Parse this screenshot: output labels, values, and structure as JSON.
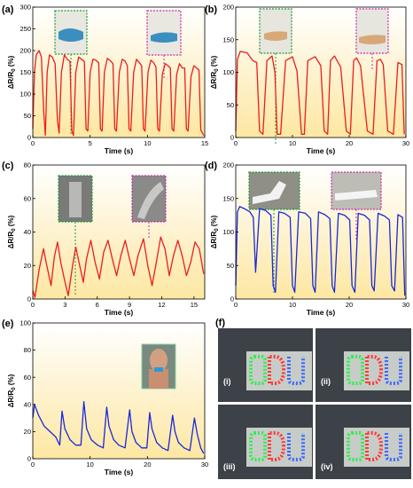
{
  "axis_labels": {
    "time": "Time (s)",
    "ylabel_main": "ΔR/R",
    "ylabel_sub": "0",
    "ylabel_unit": " (%)"
  },
  "photo_labels": [
    "(i)",
    "(ii)",
    "(iii)",
    "(iv)"
  ],
  "colors": {
    "red": "#ee1c1c",
    "blue": "#1a28d8",
    "green_frame": "#1f9a3a",
    "magenta_frame": "#cc2aa8",
    "bg_top": "#ffffff",
    "bg_bottom": "#fde7a2"
  },
  "chart_data": [
    {
      "panel": "(a)",
      "type": "line",
      "xlabel": "Time (s)",
      "ylabel": "ΔR/R0 (%)",
      "xlim": [
        0,
        15
      ],
      "ylim": [
        0,
        300
      ],
      "xticks": [
        0,
        5,
        10,
        15
      ],
      "yticks": [
        0,
        50,
        100,
        150,
        200,
        250,
        300
      ],
      "series": [
        {
          "color": "#ee1c1c",
          "x": [
            0,
            0.15,
            0.3,
            0.55,
            0.75,
            0.95,
            1.1,
            1.25,
            1.45,
            1.7,
            1.95,
            2.15,
            2.3,
            2.5,
            2.75,
            3.0,
            3.25,
            3.4,
            3.55,
            3.75,
            4.0,
            4.25,
            4.5,
            4.65,
            4.8,
            5.0,
            5.25,
            5.5,
            5.75,
            5.9,
            6.05,
            6.25,
            6.5,
            6.8,
            7.0,
            7.15,
            7.3,
            7.55,
            7.8,
            8.05,
            8.25,
            8.4,
            8.55,
            8.8,
            9.05,
            9.3,
            9.5,
            9.65,
            9.8,
            10.05,
            10.3,
            10.55,
            10.75,
            10.9,
            11.05,
            11.3,
            11.55,
            11.8,
            12.0,
            12.15,
            12.3,
            12.55,
            12.8,
            13.05,
            13.25,
            13.4,
            13.55,
            13.8,
            14.05,
            14.3,
            14.5,
            14.65,
            14.8,
            14.9
          ],
          "y": [
            20,
            150,
            190,
            200,
            185,
            60,
            5,
            150,
            190,
            185,
            170,
            40,
            10,
            150,
            190,
            180,
            175,
            15,
            5,
            150,
            185,
            180,
            175,
            20,
            15,
            150,
            180,
            178,
            172,
            20,
            15,
            150,
            182,
            176,
            170,
            20,
            15,
            150,
            180,
            176,
            165,
            20,
            15,
            150,
            180,
            172,
            165,
            20,
            15,
            150,
            178,
            172,
            162,
            20,
            15,
            145,
            170,
            165,
            160,
            20,
            15,
            145,
            170,
            160,
            160,
            20,
            15,
            140,
            165,
            160,
            155,
            18,
            10,
            5
          ]
        }
      ]
    },
    {
      "panel": "(b)",
      "type": "line",
      "xlabel": "Time (s)",
      "ylabel": "ΔR/R0 (%)",
      "xlim": [
        0,
        30
      ],
      "ylim": [
        0,
        200
      ],
      "xticks": [
        0,
        10,
        20,
        30
      ],
      "yticks": [
        0,
        50,
        100,
        150,
        200
      ],
      "series": [
        {
          "color": "#ee1c1c",
          "x": [
            0,
            0.3,
            0.8,
            2,
            3,
            3.7,
            4.2,
            4.8,
            5.5,
            6.4,
            6.9,
            7.3,
            7.9,
            8.8,
            10,
            10.8,
            11.6,
            12.1,
            12.7,
            14,
            15,
            15.6,
            16.2,
            16.7,
            17.4,
            18.5,
            19.5,
            20.2,
            20.8,
            21.3,
            22,
            23.2,
            24.2,
            24.9,
            25.5,
            26,
            26.8,
            27.8,
            28.6,
            29.3,
            29.7
          ],
          "y": [
            10,
            120,
            132,
            130,
            118,
            115,
            10,
            5,
            118,
            125,
            100,
            5,
            5,
            118,
            124,
            102,
            5,
            5,
            118,
            124,
            110,
            10,
            5,
            118,
            125,
            108,
            10,
            5,
            118,
            122,
            110,
            10,
            5,
            118,
            120,
            112,
            10,
            5,
            115,
            112,
            5
          ]
        }
      ]
    },
    {
      "panel": "(c)",
      "type": "line",
      "xlabel": "Time (s)",
      "ylabel": "ΔR/R0 (%)",
      "xlim": [
        0,
        16
      ],
      "ylim": [
        0,
        80
      ],
      "xticks": [
        0,
        3,
        6,
        9,
        12,
        15
      ],
      "yticks": [
        0,
        20,
        40,
        60,
        80
      ],
      "series": [
        {
          "color": "#ee1c1c",
          "x": [
            0,
            0.2,
            0.6,
            1.0,
            1.3,
            1.7,
            2.0,
            2.3,
            2.6,
            3.0,
            3.3,
            3.7,
            4.0,
            4.3,
            4.7,
            5.0,
            5.4,
            5.8,
            6.2,
            6.6,
            7.0,
            7.4,
            7.8,
            8.2,
            8.6,
            9.0,
            9.4,
            9.8,
            10.3,
            10.7,
            11.1,
            11.5,
            11.9,
            12.3,
            12.7,
            13.1,
            13.5,
            13.9,
            14.3,
            14.7,
            15.1,
            15.5,
            15.9
          ],
          "y": [
            5,
            1,
            18,
            30,
            20,
            8,
            25,
            34,
            22,
            10,
            2,
            20,
            31,
            22,
            10,
            24,
            35,
            22,
            12,
            28,
            35,
            24,
            14,
            26,
            35,
            24,
            14,
            26,
            36,
            20,
            8,
            22,
            37,
            30,
            14,
            26,
            35,
            26,
            14,
            22,
            34,
            30,
            15
          ]
        }
      ]
    },
    {
      "panel": "(d)",
      "type": "line",
      "xlabel": "Time (s)",
      "ylabel": "ΔR/R0 (%)",
      "xlim": [
        0,
        30
      ],
      "ylim": [
        0,
        200
      ],
      "xticks": [
        0,
        10,
        20,
        30
      ],
      "yticks": [
        0,
        50,
        100,
        150,
        200
      ],
      "series": [
        {
          "color": "#1a28d8",
          "x": [
            0,
            0.3,
            0.7,
            1.5,
            2.5,
            3.1,
            3.5,
            4.2,
            5.3,
            6.2,
            6.6,
            7,
            7.6,
            8.6,
            9.6,
            10,
            10.4,
            11.1,
            12.3,
            13.2,
            13.6,
            14,
            14.6,
            15.7,
            16.6,
            17,
            17.4,
            18.1,
            19.2,
            20.1,
            20.5,
            21,
            21.6,
            22.7,
            23.6,
            24,
            24.4,
            25.1,
            26.2,
            27.1,
            27.5,
            28,
            28.6,
            29.4,
            29.8
          ],
          "y": [
            20,
            130,
            138,
            135,
            130,
            122,
            40,
            135,
            132,
            125,
            20,
            10,
            130,
            128,
            122,
            20,
            10,
            130,
            128,
            120,
            20,
            10,
            130,
            126,
            120,
            20,
            10,
            128,
            125,
            118,
            20,
            10,
            128,
            125,
            118,
            20,
            12,
            128,
            124,
            118,
            20,
            12,
            126,
            122,
            5
          ]
        }
      ]
    },
    {
      "panel": "(e)",
      "type": "line",
      "xlabel": "Time (s)",
      "ylabel": "ΔR/R0 (%)",
      "xlim": [
        0,
        30
      ],
      "ylim": [
        0,
        100
      ],
      "xticks": [
        0,
        10,
        20,
        30
      ],
      "yticks": [
        0,
        20,
        40,
        60,
        80,
        100
      ],
      "series": [
        {
          "color": "#1a28d8",
          "x": [
            0,
            0.3,
            1,
            2,
            3,
            4,
            4.7,
            5.1,
            5.6,
            6.5,
            7.5,
            8.4,
            8.9,
            9.4,
            10.2,
            11.3,
            12.3,
            12.9,
            13.3,
            14.1,
            15,
            16.1,
            16.9,
            17.3,
            18,
            19,
            19.9,
            20.4,
            20.8,
            21.6,
            22.6,
            23.6,
            24.4,
            24.8,
            25.4,
            26.4,
            27.4,
            28.2,
            28.7,
            29.3,
            29.8
          ],
          "y": [
            30,
            40,
            32,
            24,
            20,
            16,
            10,
            35,
            22,
            14,
            10,
            10,
            42,
            22,
            14,
            10,
            8,
            38,
            24,
            14,
            10,
            8,
            36,
            20,
            12,
            8,
            8,
            34,
            22,
            12,
            8,
            6,
            32,
            20,
            12,
            8,
            6,
            30,
            18,
            8,
            4
          ]
        }
      ]
    }
  ]
}
